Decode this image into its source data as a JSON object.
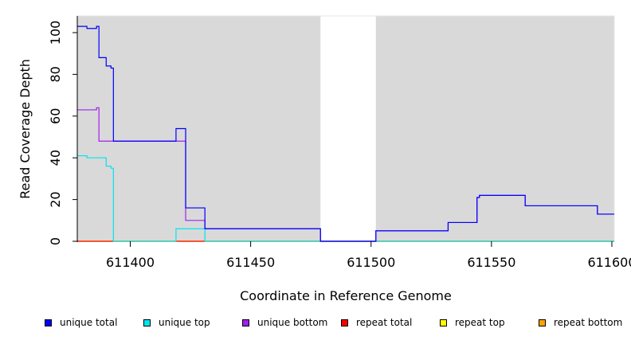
{
  "chart_data": {
    "type": "line",
    "xlabel": "Coordinate in Reference Genome",
    "ylabel": "Read Coverage Depth",
    "xlim": [
      611378,
      611601
    ],
    "ylim": [
      0,
      108
    ],
    "xticks": [
      611400,
      611450,
      611500,
      611550,
      611600
    ],
    "xtick_labels": [
      "611400",
      "611450",
      "611500",
      "611550",
      "611600"
    ],
    "yticks": [
      0,
      20,
      40,
      60,
      80,
      100
    ],
    "ytick_labels": [
      "0",
      "20",
      "40",
      "60",
      "80",
      "100"
    ],
    "grid": false,
    "background": "#d9d9d9",
    "unshaded_region": [
      611479,
      611502
    ],
    "legend_position": "bottom",
    "series": [
      {
        "name": "unique total",
        "color": "#0000ff",
        "x": [
          611378,
          611382,
          611382,
          611386,
          611386,
          611387,
          611387,
          611390,
          611390,
          611392,
          611392,
          611393,
          611393,
          611397,
          611397,
          611419,
          611419,
          611423,
          611423,
          611431,
          611431,
          611479,
          611479,
          611502,
          611502,
          611532,
          611532,
          611544,
          611544,
          611545,
          611545,
          611564,
          611564,
          611594,
          611594,
          611601
        ],
        "y": [
          103,
          103,
          102,
          102,
          103,
          103,
          88,
          88,
          84,
          84,
          83,
          83,
          48,
          48,
          48,
          48,
          54,
          54,
          16,
          16,
          6,
          6,
          0,
          0,
          5,
          5,
          9,
          9,
          21,
          21,
          22,
          22,
          17,
          17,
          13,
          13
        ]
      },
      {
        "name": "unique top",
        "color": "#00e5ee",
        "x": [
          611378,
          611382,
          611382,
          611390,
          611390,
          611392,
          611392,
          611393,
          611393,
          611419,
          611419,
          611431,
          611431,
          611601
        ],
        "y": [
          41,
          41,
          40,
          40,
          36,
          36,
          35,
          35,
          0,
          0,
          6,
          6,
          0,
          0
        ]
      },
      {
        "name": "unique bottom",
        "color": "#a020f0",
        "x": [
          611378,
          611386,
          611386,
          611387,
          611387,
          611423,
          611423,
          611431,
          611431,
          611479,
          611479,
          611502,
          611502,
          611532,
          611532,
          611544,
          611544,
          611545,
          611545,
          611564,
          611564,
          611594,
          611594,
          611601
        ],
        "y": [
          63,
          63,
          64,
          64,
          48,
          48,
          10,
          10,
          6,
          6,
          0,
          0,
          5,
          5,
          9,
          9,
          21,
          21,
          22,
          22,
          17,
          17,
          13,
          13
        ]
      },
      {
        "name": "repeat total",
        "color": "#ff0000",
        "x": [
          611378,
          611601
        ],
        "y": [
          0,
          0
        ]
      },
      {
        "name": "repeat top",
        "color": "#ffff00",
        "x": [
          611378,
          611601
        ],
        "y": [
          0,
          0
        ]
      },
      {
        "name": "repeat bottom",
        "color": "#ffa500",
        "x": [
          611378,
          611393,
          611393,
          611601
        ],
        "y": [
          0,
          0,
          0,
          0
        ]
      }
    ]
  },
  "legend": [
    {
      "label": "unique total",
      "color": "#0000ff"
    },
    {
      "label": "unique top",
      "color": "#00e5ee"
    },
    {
      "label": "unique bottom",
      "color": "#a020f0"
    },
    {
      "label": "repeat total",
      "color": "#ff0000"
    },
    {
      "label": "repeat top",
      "color": "#ffff00"
    },
    {
      "label": "repeat bottom",
      "color": "#ffa500"
    }
  ]
}
